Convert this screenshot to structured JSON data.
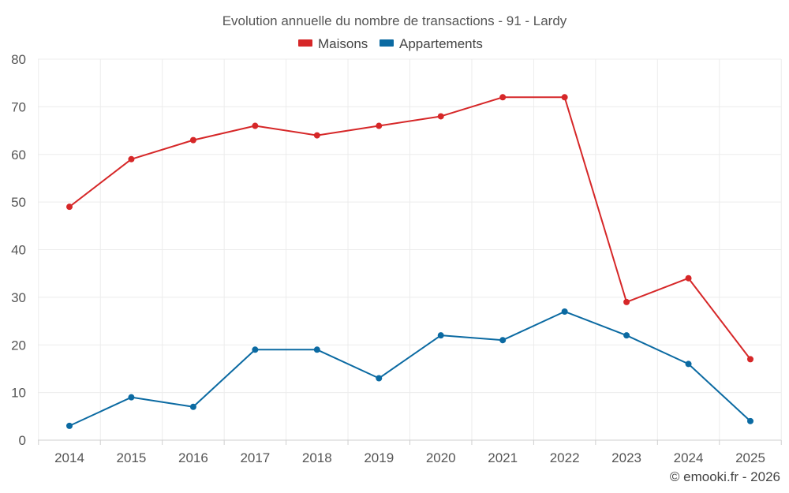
{
  "chart_data": {
    "type": "line",
    "title": "Evolution annuelle du nombre de transactions - 91 - Lardy",
    "categories": [
      "2014",
      "2015",
      "2016",
      "2017",
      "2018",
      "2019",
      "2020",
      "2021",
      "2022",
      "2023",
      "2024",
      "2025"
    ],
    "series": [
      {
        "name": "Maisons",
        "color": "#d62728",
        "values": [
          49,
          59,
          63,
          66,
          64,
          66,
          68,
          72,
          72,
          29,
          34,
          17
        ]
      },
      {
        "name": "Appartements",
        "color": "#0b6aa2",
        "values": [
          3,
          9,
          7,
          19,
          19,
          13,
          22,
          21,
          27,
          22,
          16,
          4
        ]
      }
    ],
    "ylim": [
      0,
      80
    ],
    "yticks": [
      "0",
      "10",
      "20",
      "30",
      "40",
      "50",
      "60",
      "70",
      "80"
    ],
    "grid": true,
    "legend_position": "top-center",
    "xlabel": "",
    "ylabel": ""
  },
  "credit": "© emooki.fr - 2026"
}
